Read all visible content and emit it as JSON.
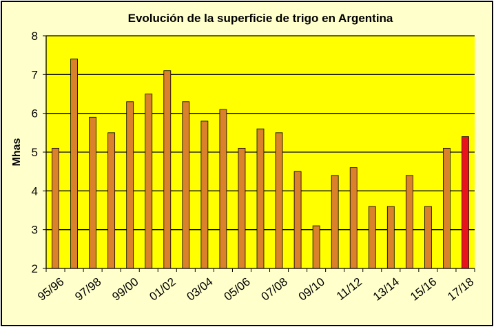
{
  "chart_data": {
    "type": "bar",
    "title": "Evolución de la superficie de trigo en Argentina",
    "ylabel": "Mhas",
    "xlabel": "",
    "ylim": [
      2,
      8
    ],
    "yticks": [
      2,
      3,
      4,
      5,
      6,
      7,
      8
    ],
    "grid": true,
    "legend": "none",
    "categories": [
      "95/96",
      "96/97",
      "97/98",
      "98/99",
      "99/00",
      "00/01",
      "01/02",
      "02/03",
      "03/04",
      "04/05",
      "05/06",
      "06/07",
      "07/08",
      "08/09",
      "09/10",
      "10/11",
      "11/12",
      "12/13",
      "13/14",
      "14/15",
      "15/16",
      "16/17",
      "17/18"
    ],
    "tick_labels": [
      "95/96",
      "97/98",
      "99/00",
      "01/02",
      "03/04",
      "05/06",
      "07/08",
      "09/10",
      "11/12",
      "13/14",
      "15/16",
      "17/18"
    ],
    "values": [
      5.1,
      7.4,
      5.9,
      5.5,
      6.3,
      6.5,
      7.1,
      6.3,
      5.8,
      6.1,
      5.1,
      5.6,
      5.5,
      4.5,
      3.1,
      4.4,
      4.6,
      3.6,
      3.6,
      4.4,
      3.6,
      5.1,
      5.4
    ],
    "colors": {
      "plot_background": "#ffff00",
      "chart_background": "#ffffcc",
      "bar": "#d9822b",
      "bar_highlight": "#e8141c",
      "bar_edge": "#000000",
      "gridline": "#000000"
    },
    "highlight_index": 22
  }
}
